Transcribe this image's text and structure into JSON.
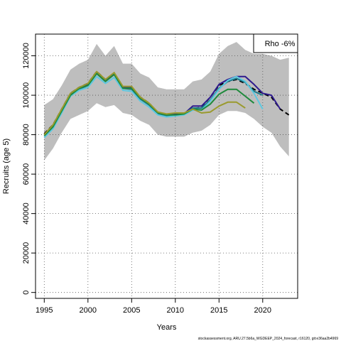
{
  "chart_data": {
    "type": "line",
    "title": "",
    "xlabel": "Years",
    "ylabel": "Recruits (age 5)",
    "xlim": [
      1994,
      2024
    ],
    "ylim": [
      -3000,
      131000
    ],
    "x_ticks": [
      1995,
      2000,
      2005,
      2010,
      2015,
      2020
    ],
    "x_tick_labels": [
      "1995",
      "2000",
      "2005",
      "2010",
      "2015",
      "2020"
    ],
    "y_ticks": [
      0,
      20000,
      40000,
      60000,
      80000,
      100000,
      120000
    ],
    "y_tick_labels": [
      "0",
      "20000",
      "40000",
      "60000",
      "80000",
      "100000",
      "120000"
    ],
    "grid": true,
    "legend": {
      "position": "top-right",
      "text": "Rho -6%"
    },
    "footer": "stockassessment.org, ARU.27.5b6a_WGDEEP_2024_forecast, r16120, git:e36aa2b4969",
    "band": {
      "color": "#bebebe",
      "x": [
        1995,
        1996,
        1997,
        1998,
        1999,
        2000,
        2001,
        2002,
        2003,
        2004,
        2005,
        2006,
        2007,
        2008,
        2009,
        2010,
        2011,
        2012,
        2013,
        2014,
        2015,
        2016,
        2017,
        2018,
        2019,
        2020,
        2021,
        2022,
        2023
      ],
      "upper": [
        95000,
        98000,
        105000,
        113000,
        116000,
        118000,
        126000,
        120000,
        125000,
        116000,
        116000,
        111000,
        109000,
        104000,
        103000,
        103000,
        103000,
        107000,
        108000,
        112000,
        121000,
        125000,
        127000,
        123000,
        121000,
        121000,
        120000,
        118000,
        119000
      ],
      "lower": [
        67000,
        73000,
        81000,
        88000,
        90000,
        92000,
        96000,
        94000,
        95000,
        91000,
        90000,
        87000,
        85000,
        80000,
        79000,
        79000,
        79000,
        81000,
        82000,
        85000,
        90000,
        92000,
        92000,
        91000,
        88000,
        84000,
        81000,
        74000,
        69000
      ]
    },
    "series": [
      {
        "color": "#000000",
        "dashed": true,
        "x": [
          1995,
          1996,
          1997,
          1998,
          1999,
          2000,
          2001,
          2002,
          2003,
          2004,
          2005,
          2006,
          2007,
          2008,
          2009,
          2010,
          2011,
          2012,
          2013,
          2014,
          2015,
          2016,
          2017,
          2018,
          2019,
          2020,
          2021,
          2022,
          2023
        ],
        "values": [
          80500,
          85000,
          93000,
          101000,
          104000,
          106000,
          112000,
          108000,
          111000,
          104000,
          104000,
          99000,
          96000,
          91000,
          90500,
          90500,
          90500,
          93000,
          94000,
          99000,
          105000,
          107000,
          108000,
          106000,
          103000,
          101000,
          99000,
          93000,
          90000
        ]
      },
      {
        "color": "#2e1a8e",
        "dashed": false,
        "x": [
          1995,
          1996,
          1997,
          1998,
          1999,
          2000,
          2001,
          2002,
          2003,
          2004,
          2005,
          2006,
          2007,
          2008,
          2009,
          2010,
          2011,
          2012,
          2013,
          2014,
          2015,
          2016,
          2017,
          2018,
          2019,
          2020,
          2021,
          2022
        ],
        "values": [
          80000,
          84500,
          92500,
          100500,
          103500,
          105500,
          111500,
          107500,
          111000,
          104000,
          104000,
          98500,
          95500,
          91000,
          90000,
          90500,
          90500,
          94500,
          94500,
          99000,
          105500,
          108000,
          109500,
          109500,
          105500,
          101000,
          100000,
          93000
        ]
      },
      {
        "color": "#1a7a8a",
        "dashed": false,
        "x": [
          1995,
          1996,
          1997,
          1998,
          1999,
          2000,
          2001,
          2002,
          2003,
          2004,
          2005,
          2006,
          2007,
          2008,
          2009,
          2010,
          2011,
          2012,
          2013,
          2014,
          2015,
          2016,
          2017,
          2018,
          2019,
          2020
        ],
        "values": [
          79500,
          84000,
          92000,
          100000,
          103000,
          105000,
          111000,
          107000,
          110500,
          103500,
          103000,
          98000,
          95000,
          90500,
          89500,
          90000,
          90500,
          93500,
          93500,
          97500,
          103500,
          107000,
          108500,
          106500,
          102000,
          100000
        ]
      },
      {
        "color": "#5ec8e0",
        "dashed": false,
        "x": [
          1995,
          1996,
          1997,
          1998,
          1999,
          2000,
          2001,
          2002,
          2003,
          2004,
          2005,
          2006,
          2007,
          2008,
          2009,
          2010,
          2011,
          2012,
          2013,
          2014,
          2015,
          2016,
          2017,
          2018,
          2019,
          2020
        ],
        "values": [
          78500,
          83000,
          91000,
          99500,
          102500,
          104000,
          109500,
          106000,
          109000,
          102500,
          102000,
          97000,
          94000,
          90000,
          89000,
          89500,
          90000,
          92500,
          92500,
          97000,
          103000,
          107500,
          109500,
          107000,
          101000,
          93000
        ]
      },
      {
        "color": "#1f8a3c",
        "dashed": false,
        "x": [
          1995,
          1996,
          1997,
          1998,
          1999,
          2000,
          2001,
          2002,
          2003,
          2004,
          2005,
          2006,
          2007,
          2008,
          2009,
          2010,
          2011,
          2012,
          2013,
          2014,
          2015,
          2016,
          2017,
          2018,
          2019
        ],
        "values": [
          79500,
          84000,
          92000,
          100000,
          103500,
          105000,
          111000,
          107000,
          110500,
          103500,
          103500,
          98500,
          95500,
          91000,
          90000,
          90000,
          90500,
          93000,
          92500,
          95500,
          100500,
          103000,
          103000,
          99500,
          96000
        ]
      },
      {
        "color": "#9a9a2e",
        "dashed": false,
        "x": [
          1995,
          1996,
          1997,
          1998,
          1999,
          2000,
          2001,
          2002,
          2003,
          2004,
          2005,
          2006,
          2007,
          2008,
          2009,
          2010,
          2011,
          2012,
          2013,
          2014,
          2015,
          2016,
          2017,
          2018
        ],
        "values": [
          80000,
          85000,
          93000,
          101000,
          104000,
          106000,
          112000,
          108000,
          111500,
          104500,
          104500,
          99000,
          96000,
          91500,
          90500,
          91000,
          91000,
          93000,
          91000,
          91500,
          94500,
          96500,
          96500,
          93500
        ]
      }
    ]
  }
}
